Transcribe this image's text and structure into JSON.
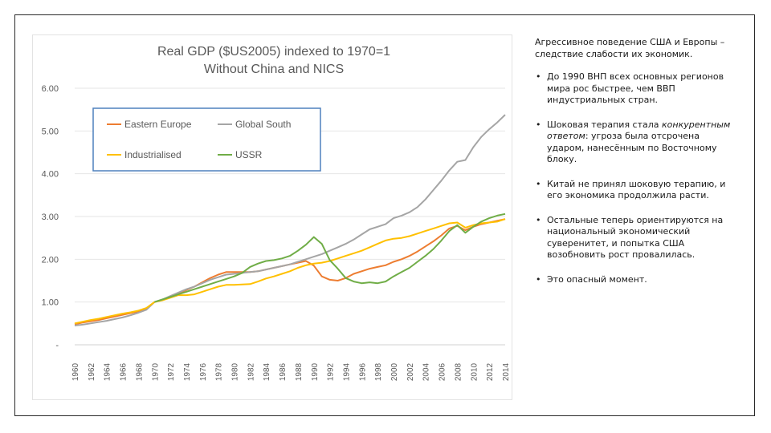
{
  "notes": {
    "intro": "Агрессивное поведение США и Европы – следствие слабости их экономик.",
    "bullets": [
      {
        "text": "До 1990 ВНП всех основных регионов мира рос быстрее, чем ВВП индустриальных стран."
      },
      {
        "pre": "Шоковая терапия стала ",
        "italic": "конкурентным ответом",
        "post": ": угроза была отсрочена ударом, нанесённым по Восточному блоку."
      },
      {
        "text": "Китай не принял шоковую терапию, и его экономика продолжила расти."
      },
      {
        "text": "Остальные теперь ориентируются на национальный экономический суверенитет, и попытка США возобновить рост провалилась."
      },
      {
        "text": "Это опасный момент."
      }
    ]
  },
  "chart_data": {
    "type": "line",
    "title": "Real GDP ($US2005) indexed to 1970=1",
    "subtitle": "Without China and NICS",
    "xlabel": "",
    "ylabel": "",
    "ylim": [
      0,
      6
    ],
    "yticks": [
      {
        "value": 6,
        "label": "6.00"
      },
      {
        "value": 5,
        "label": "5.00"
      },
      {
        "value": 4,
        "label": "4.00"
      },
      {
        "value": 3,
        "label": "3.00"
      },
      {
        "value": 2,
        "label": "2.00"
      },
      {
        "value": 1,
        "label": "1.00"
      },
      {
        "value": 0,
        "label": "-"
      }
    ],
    "grid": true,
    "legend_position": "top-left",
    "x": [
      1960,
      1961,
      1962,
      1963,
      1964,
      1965,
      1966,
      1967,
      1968,
      1969,
      1970,
      1971,
      1972,
      1973,
      1974,
      1975,
      1976,
      1977,
      1978,
      1979,
      1980,
      1981,
      1982,
      1983,
      1984,
      1985,
      1986,
      1987,
      1988,
      1989,
      1990,
      1991,
      1992,
      1993,
      1994,
      1995,
      1996,
      1997,
      1998,
      1999,
      2000,
      2001,
      2002,
      2003,
      2004,
      2005,
      2006,
      2007,
      2008,
      2009,
      2010,
      2011,
      2012,
      2013,
      2014
    ],
    "xticklabels": [
      "1960",
      "1962",
      "1964",
      "1966",
      "1968",
      "1970",
      "1972",
      "1974",
      "1976",
      "1978",
      "1980",
      "1982",
      "1984",
      "1986",
      "1988",
      "1990",
      "1992",
      "1994",
      "1996",
      "1998",
      "2000",
      "2002",
      "2004",
      "2006",
      "2008",
      "2010",
      "2012",
      "2014"
    ],
    "series": [
      {
        "name": "Eastern Europe",
        "color": "#ed7d31",
        "values": [
          0.48,
          0.52,
          0.55,
          0.58,
          0.62,
          0.66,
          0.7,
          0.74,
          0.78,
          0.84,
          1.0,
          1.05,
          1.12,
          1.2,
          1.28,
          1.36,
          1.46,
          1.56,
          1.64,
          1.7,
          1.7,
          1.7,
          1.7,
          1.72,
          1.76,
          1.8,
          1.84,
          1.88,
          1.92,
          1.96,
          1.85,
          1.6,
          1.52,
          1.5,
          1.56,
          1.66,
          1.72,
          1.78,
          1.82,
          1.86,
          1.94,
          2.0,
          2.08,
          2.18,
          2.3,
          2.42,
          2.56,
          2.72,
          2.78,
          2.68,
          2.76,
          2.82,
          2.86,
          2.9,
          2.94
        ]
      },
      {
        "name": "Global South",
        "color": "#a5a5a5",
        "values": [
          0.45,
          0.47,
          0.5,
          0.53,
          0.56,
          0.6,
          0.64,
          0.69,
          0.75,
          0.82,
          1.0,
          1.06,
          1.14,
          1.22,
          1.3,
          1.36,
          1.44,
          1.52,
          1.58,
          1.64,
          1.66,
          1.68,
          1.7,
          1.72,
          1.76,
          1.8,
          1.84,
          1.88,
          1.94,
          2.0,
          2.06,
          2.12,
          2.2,
          2.28,
          2.36,
          2.46,
          2.58,
          2.7,
          2.76,
          2.82,
          2.96,
          3.02,
          3.1,
          3.22,
          3.4,
          3.62,
          3.84,
          4.08,
          4.28,
          4.32,
          4.62,
          4.86,
          5.04,
          5.2,
          5.38
        ]
      },
      {
        "name": "Industrialised",
        "color": "#ffc000",
        "values": [
          0.5,
          0.54,
          0.58,
          0.61,
          0.65,
          0.69,
          0.73,
          0.76,
          0.8,
          0.86,
          1.0,
          1.04,
          1.1,
          1.16,
          1.16,
          1.18,
          1.24,
          1.3,
          1.36,
          1.4,
          1.4,
          1.41,
          1.42,
          1.48,
          1.55,
          1.6,
          1.66,
          1.72,
          1.8,
          1.86,
          1.9,
          1.92,
          1.96,
          2.02,
          2.08,
          2.14,
          2.2,
          2.28,
          2.36,
          2.44,
          2.48,
          2.5,
          2.54,
          2.6,
          2.66,
          2.72,
          2.78,
          2.84,
          2.86,
          2.74,
          2.8,
          2.84,
          2.86,
          2.88,
          2.94
        ]
      },
      {
        "name": "USSR",
        "color": "#70ad47",
        "values": [
          null,
          null,
          null,
          null,
          null,
          null,
          null,
          null,
          null,
          null,
          1.0,
          1.06,
          1.12,
          1.18,
          1.24,
          1.3,
          1.36,
          1.42,
          1.48,
          1.54,
          1.6,
          1.68,
          1.82,
          1.9,
          1.96,
          1.98,
          2.02,
          2.08,
          2.2,
          2.34,
          2.52,
          2.36,
          1.98,
          1.78,
          1.56,
          1.48,
          1.44,
          1.46,
          1.44,
          1.48,
          1.6,
          1.7,
          1.8,
          1.94,
          2.08,
          2.24,
          2.44,
          2.66,
          2.8,
          2.62,
          2.76,
          2.88,
          2.96,
          3.02,
          3.06
        ]
      }
    ]
  }
}
